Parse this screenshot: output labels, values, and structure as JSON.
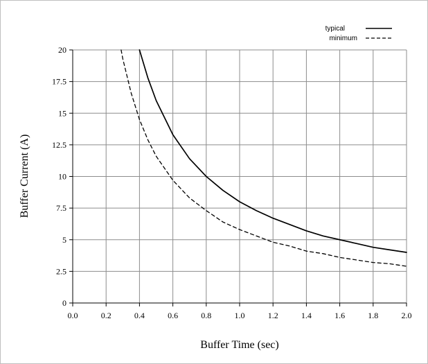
{
  "chart_data": {
    "type": "line",
    "title": "",
    "xlabel": "Buffer Time (sec)",
    "ylabel": "Buffer  Current  (A)",
    "xlim": [
      0,
      2.0
    ],
    "ylim": [
      0,
      20
    ],
    "x_ticks": [
      "0.0",
      "0.2",
      "0.4",
      "0.6",
      "0.8",
      "1.0",
      "1.2",
      "1.4",
      "1.6",
      "1.8",
      "2.0"
    ],
    "y_ticks": [
      "0",
      "2.5",
      "5",
      "7.5",
      "10",
      "12.5",
      "15",
      "17.5",
      "20"
    ],
    "grid": true,
    "legend_position": "top-right",
    "series": [
      {
        "name": "typical",
        "line_style": "solid",
        "color": "#000000",
        "x": [
          0.4,
          0.45,
          0.5,
          0.6,
          0.7,
          0.8,
          0.9,
          1.0,
          1.1,
          1.2,
          1.3,
          1.4,
          1.5,
          1.6,
          1.7,
          1.8,
          1.9,
          2.0
        ],
        "y": [
          20.0,
          17.8,
          16.0,
          13.3,
          11.4,
          10.0,
          8.9,
          8.0,
          7.3,
          6.7,
          6.2,
          5.7,
          5.3,
          5.0,
          4.7,
          4.4,
          4.2,
          4.0
        ]
      },
      {
        "name": "minimum",
        "line_style": "dashed",
        "color": "#000000",
        "x": [
          0.29,
          0.3,
          0.35,
          0.4,
          0.45,
          0.5,
          0.6,
          0.7,
          0.8,
          0.9,
          1.0,
          1.1,
          1.2,
          1.3,
          1.4,
          1.5,
          1.6,
          1.7,
          1.8,
          1.9,
          2.0
        ],
        "y": [
          20.0,
          19.3,
          16.6,
          14.5,
          12.9,
          11.6,
          9.7,
          8.3,
          7.3,
          6.4,
          5.8,
          5.3,
          4.8,
          4.5,
          4.1,
          3.9,
          3.6,
          3.4,
          3.2,
          3.1,
          2.9
        ]
      }
    ]
  }
}
